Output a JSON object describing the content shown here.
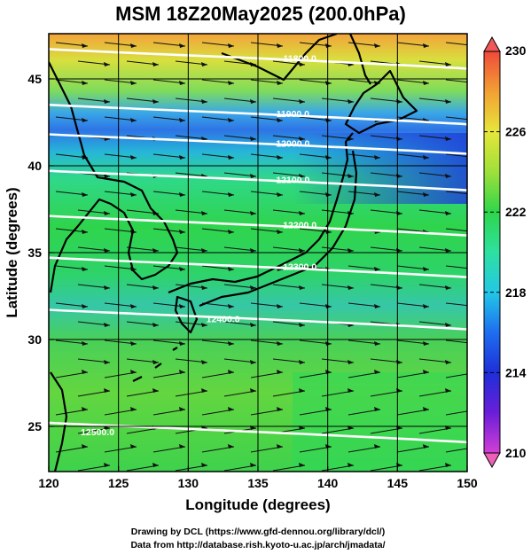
{
  "title": "MSM 18Z20May2025 (200.0hPa)",
  "credits": {
    "line1": "Drawing by DCL (https://www.gfd-dennou.org/library/dcl/)",
    "line2": "Data from http://database.rish.kyoto-u.ac.jp/arch/jmadata/"
  },
  "chart_data": {
    "type": "heatmap",
    "title": "MSM 18Z20May2025 (200.0hPa)",
    "xlabel": "Longitude (degrees)",
    "ylabel": "Latitude  (degrees)",
    "xlim": [
      120,
      150
    ],
    "ylim": [
      22.4,
      47.6
    ],
    "x_ticks": [
      "120",
      "125",
      "130",
      "135",
      "140",
      "145",
      "150"
    ],
    "x_tick_values": [
      120,
      125,
      130,
      135,
      140,
      145,
      150
    ],
    "y_ticks": [
      "25",
      "30",
      "35",
      "40",
      "45"
    ],
    "y_tick_values": [
      25,
      30,
      35,
      40,
      45
    ],
    "grid": true,
    "colorbar": {
      "range": [
        210,
        230
      ],
      "tick_labels": [
        "230",
        "226",
        "222",
        "218",
        "214",
        "210"
      ],
      "tick_values": [
        230,
        226,
        222,
        218,
        214,
        210
      ],
      "colors": {
        "210": "#d23fd6",
        "212": "#6a1ed8",
        "214": "#1e2fd8",
        "216": "#1e6ef0",
        "218": "#22c8e6",
        "220": "#2ee0a0",
        "222": "#2ed64a",
        "224": "#9ee03a",
        "226": "#e6e63a",
        "228": "#f2a034",
        "230": "#ef4a3a"
      }
    },
    "contours": [
      {
        "label": "11800.0",
        "lon": 138,
        "lat": 46.2
      },
      {
        "label": "11900.0",
        "lon": 137.5,
        "lat": 43.0
      },
      {
        "label": "12000.0",
        "lon": 137.5,
        "lat": 41.3
      },
      {
        "label": "12100.0",
        "lon": 137.5,
        "lat": 39.2
      },
      {
        "label": "12200.0",
        "lon": 138.0,
        "lat": 36.6
      },
      {
        "label": "12300.0",
        "lon": 138.0,
        "lat": 34.2
      },
      {
        "label": "12400.0",
        "lon": 132.5,
        "lat": 31.2
      },
      {
        "label": "12500.0",
        "lon": 123.5,
        "lat": 24.7
      }
    ],
    "field_note": "Temperature (K) shading with wind streamlines and geopotential height contours (m)"
  }
}
